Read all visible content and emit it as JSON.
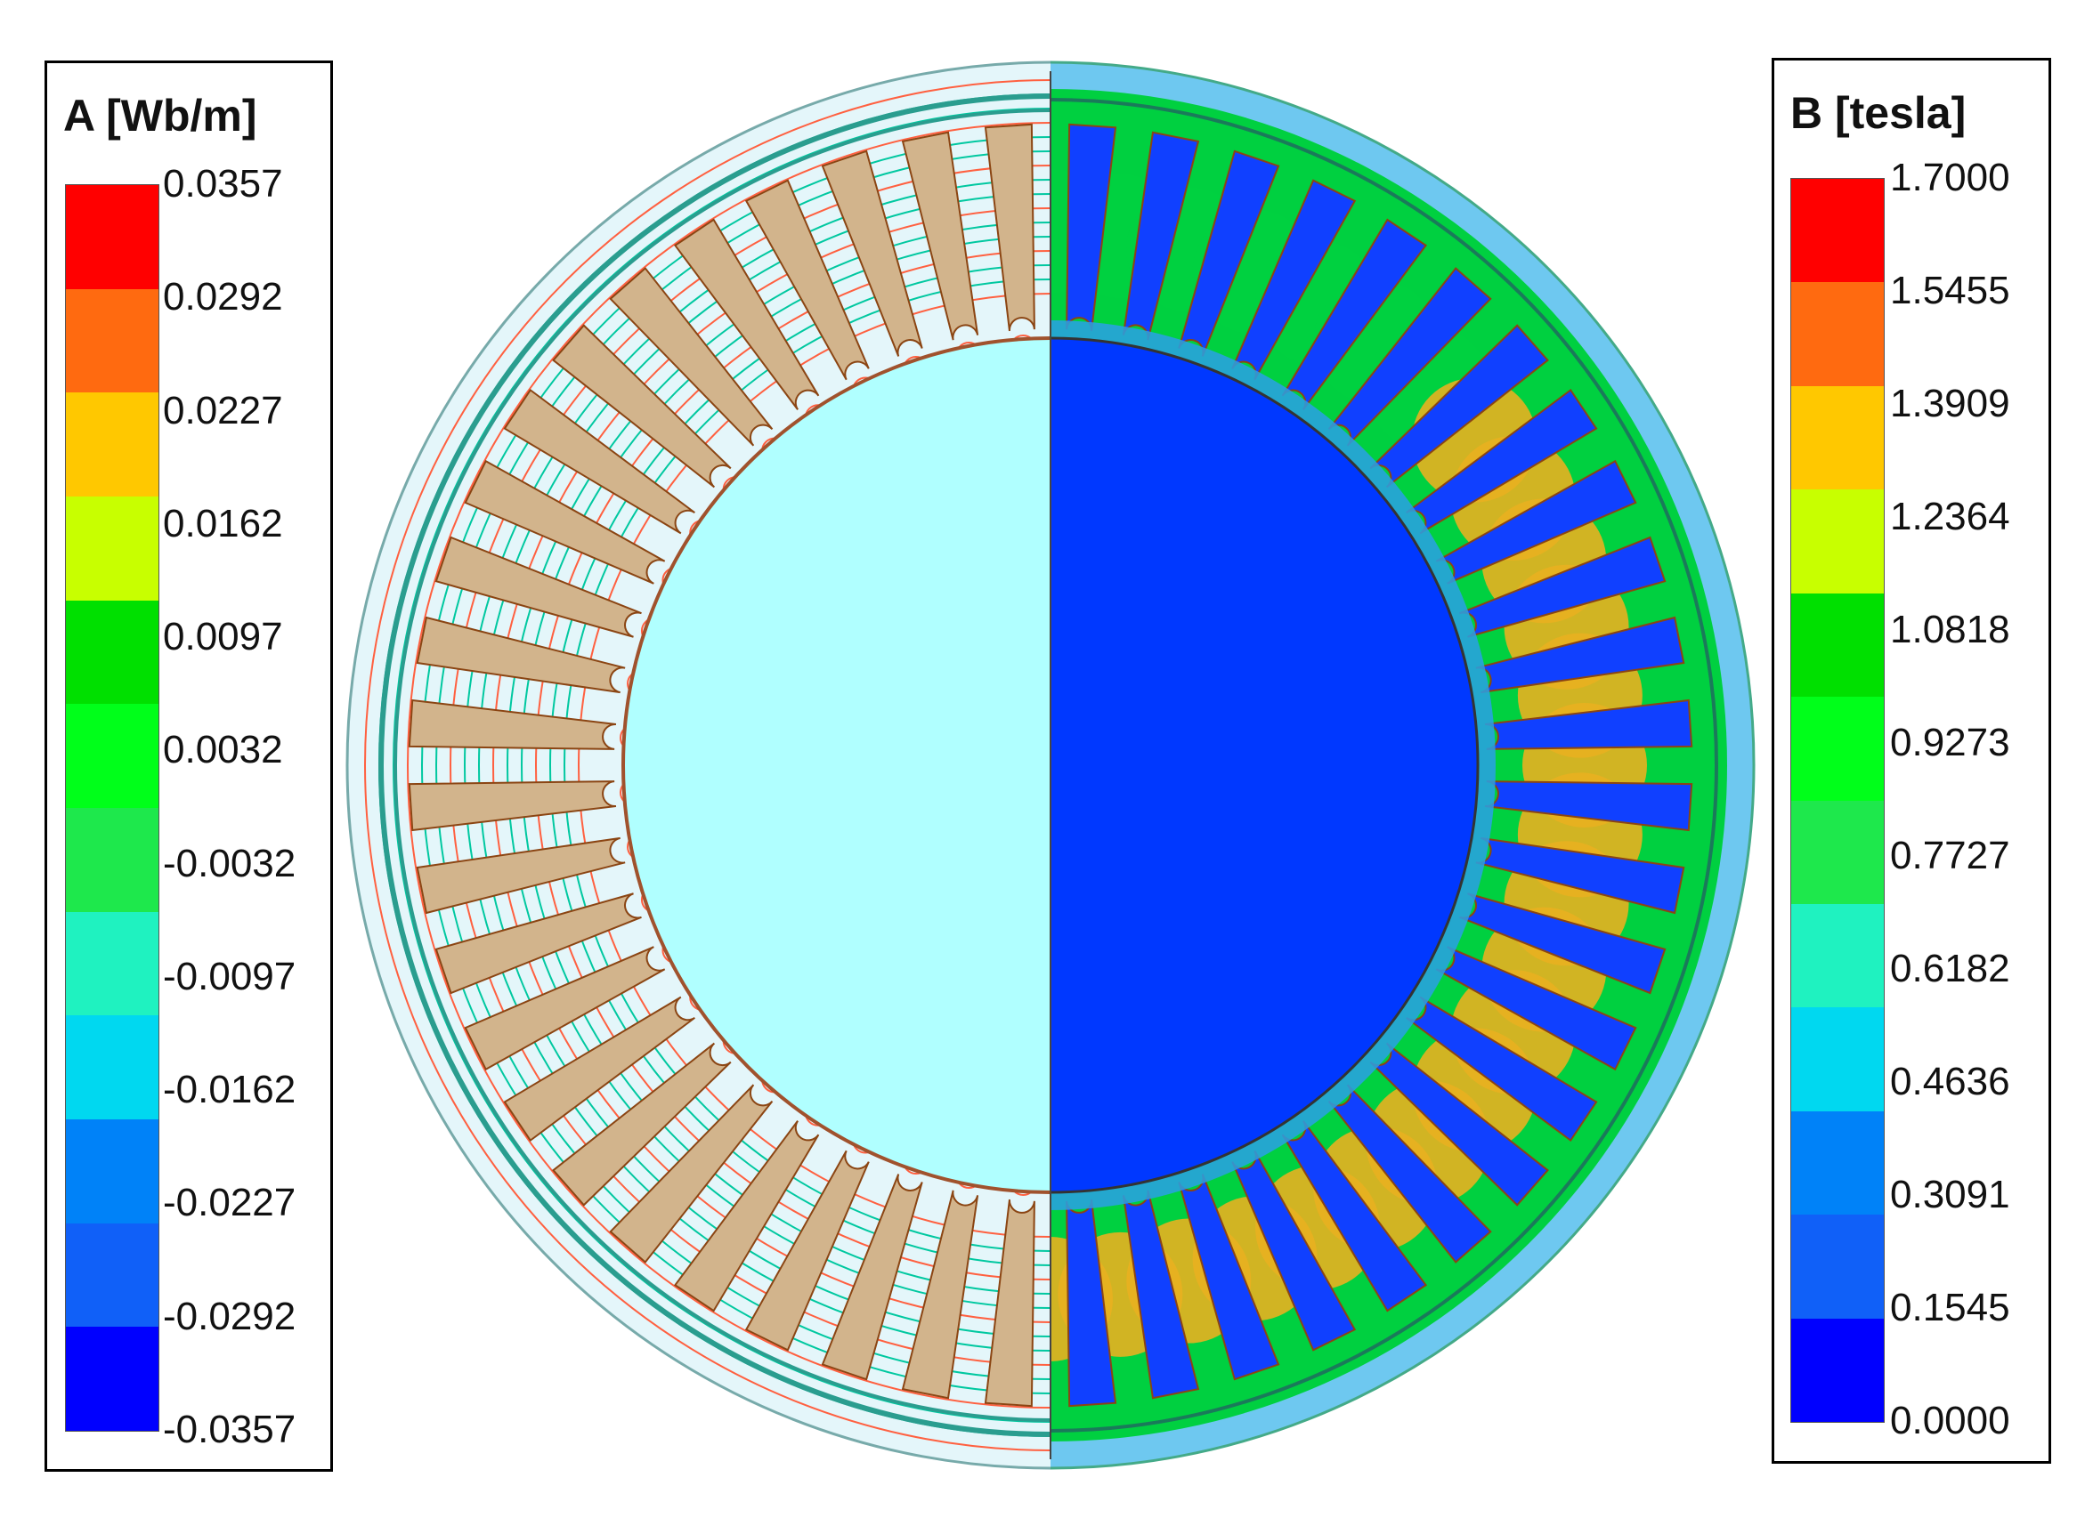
{
  "legend_a": {
    "title": "A [Wb/m]",
    "ticks": [
      "0.0357",
      "0.0292",
      "0.0227",
      "0.0162",
      "0.0097",
      "0.0032",
      "-0.0032",
      "-0.0097",
      "-0.0162",
      "-0.0227",
      "-0.0292",
      "-0.0357"
    ],
    "colors": [
      "#ff0000",
      "#ff6a10",
      "#ffc800",
      "#c8ff00",
      "#00e000",
      "#00ff1a",
      "#1ee84c",
      "#1ff2c0",
      "#00d8f0",
      "#0082f8",
      "#1060f8",
      "#0000ff"
    ]
  },
  "legend_b": {
    "title": "B [tesla]",
    "ticks": [
      "1.7000",
      "1.5455",
      "1.3909",
      "1.2364",
      "1.0818",
      "0.9273",
      "0.7727",
      "0.6182",
      "0.4636",
      "0.3091",
      "0.1545",
      "0.0000"
    ],
    "colors": [
      "#ff0000",
      "#ff6a10",
      "#ffc800",
      "#c8ff00",
      "#00e000",
      "#00ff1a",
      "#1ee84c",
      "#1ff2c0",
      "#00d8f0",
      "#0082f8",
      "#1060f8",
      "#0000ff"
    ]
  },
  "colors": {
    "rotor_bore_left": "#b0ffff",
    "rotor_bore_right": "#0038ff",
    "stator_left": "#e4f6fa",
    "yoke_low": "#2aa0e8",
    "tooth_mid": "#00d040",
    "tooth_high": "#e8b020",
    "coil": "#d2b48c",
    "coil_edge": "#8b4513",
    "flux_line_cold": "#00c8a0",
    "flux_line_warm": "#ff6040",
    "frame": "#6ec8f0"
  }
}
